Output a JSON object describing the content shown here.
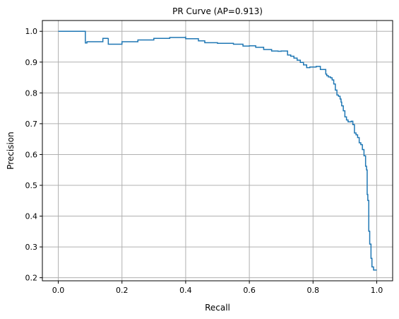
{
  "chart_data": {
    "type": "line",
    "title": "PR Curve (AP=0.913)",
    "xlabel": "Recall",
    "ylabel": "Precision",
    "xlim": [
      -0.05,
      1.05
    ],
    "ylim": [
      0.19,
      1.035
    ],
    "xticks": [
      0.0,
      0.2,
      0.4,
      0.6,
      0.8,
      1.0
    ],
    "xtick_labels": [
      "0.0",
      "0.2",
      "0.4",
      "0.6",
      "0.8",
      "1.0"
    ],
    "yticks": [
      0.2,
      0.3,
      0.4,
      0.5,
      0.6,
      0.7,
      0.8,
      0.9,
      1.0
    ],
    "ytick_labels": [
      "0.2",
      "0.3",
      "0.4",
      "0.5",
      "0.6",
      "0.7",
      "0.8",
      "0.9",
      "1.0"
    ],
    "grid": true,
    "legend": "none",
    "colors": {
      "series": "#1f77b4",
      "grid": "#b0b0b0",
      "axes": "#000000",
      "background": "#ffffff"
    },
    "series": [
      {
        "step": "post",
        "x": [
          0.0,
          0.085,
          0.085,
          0.09,
          0.14,
          0.157,
          0.157,
          0.2,
          0.25,
          0.3,
          0.35,
          0.4,
          0.4,
          0.44,
          0.44,
          0.46,
          0.46,
          0.5,
          0.5,
          0.55,
          0.55,
          0.58,
          0.58,
          0.6,
          0.6,
          0.62,
          0.62,
          0.645,
          0.645,
          0.67,
          0.67,
          0.69,
          0.69,
          0.7,
          0.7,
          0.72,
          0.72,
          0.73,
          0.73,
          0.74,
          0.74,
          0.75,
          0.75,
          0.76,
          0.76,
          0.77,
          0.77,
          0.78,
          0.78,
          0.79,
          0.79,
          0.81,
          0.81,
          0.823,
          0.823,
          0.84,
          0.84,
          0.843,
          0.843,
          0.848,
          0.848,
          0.855,
          0.855,
          0.86,
          0.86,
          0.865,
          0.865,
          0.87,
          0.87,
          0.875,
          0.875,
          0.88,
          0.88,
          0.885,
          0.885,
          0.888,
          0.888,
          0.89,
          0.89,
          0.895,
          0.895,
          0.9,
          0.9,
          0.905,
          0.905,
          0.91,
          0.91,
          0.92,
          0.92,
          0.925,
          0.925,
          0.93,
          0.93,
          0.935,
          0.935,
          0.94,
          0.94,
          0.945,
          0.945,
          0.95,
          0.95,
          0.955,
          0.955,
          0.96,
          0.96,
          0.965,
          0.965,
          0.968,
          0.968,
          0.97,
          0.97,
          0.972,
          0.972,
          0.975,
          0.975,
          0.978,
          0.978,
          0.982,
          0.982,
          0.985,
          0.985,
          0.99,
          0.99,
          0.994,
          0.994,
          1.0
        ],
        "y": [
          1.0,
          1.0,
          0.962,
          0.966,
          0.977,
          0.978,
          0.958,
          0.966,
          0.972,
          0.977,
          0.98,
          0.983,
          0.976,
          0.976,
          0.969,
          0.969,
          0.963,
          0.963,
          0.961,
          0.961,
          0.958,
          0.958,
          0.952,
          0.952,
          0.953,
          0.953,
          0.948,
          0.948,
          0.941,
          0.941,
          0.936,
          0.936,
          0.935,
          0.935,
          0.936,
          0.936,
          0.923,
          0.923,
          0.919,
          0.919,
          0.913,
          0.913,
          0.906,
          0.906,
          0.899,
          0.899,
          0.891,
          0.891,
          0.882,
          0.882,
          0.884,
          0.884,
          0.886,
          0.886,
          0.876,
          0.876,
          0.861,
          0.861,
          0.856,
          0.856,
          0.852,
          0.852,
          0.849,
          0.849,
          0.842,
          0.842,
          0.829,
          0.829,
          0.809,
          0.809,
          0.793,
          0.793,
          0.789,
          0.789,
          0.78,
          0.78,
          0.77,
          0.77,
          0.758,
          0.758,
          0.742,
          0.742,
          0.722,
          0.722,
          0.712,
          0.712,
          0.706,
          0.706,
          0.708,
          0.708,
          0.697,
          0.697,
          0.67,
          0.67,
          0.664,
          0.664,
          0.655,
          0.655,
          0.638,
          0.638,
          0.632,
          0.632,
          0.616,
          0.616,
          0.596,
          0.596,
          0.562,
          0.562,
          0.55,
          0.55,
          0.47,
          0.47,
          0.451,
          0.451,
          0.351,
          0.351,
          0.309,
          0.309,
          0.263,
          0.263,
          0.235,
          0.235,
          0.225,
          0.225,
          0.225,
          0.225
        ]
      }
    ]
  }
}
